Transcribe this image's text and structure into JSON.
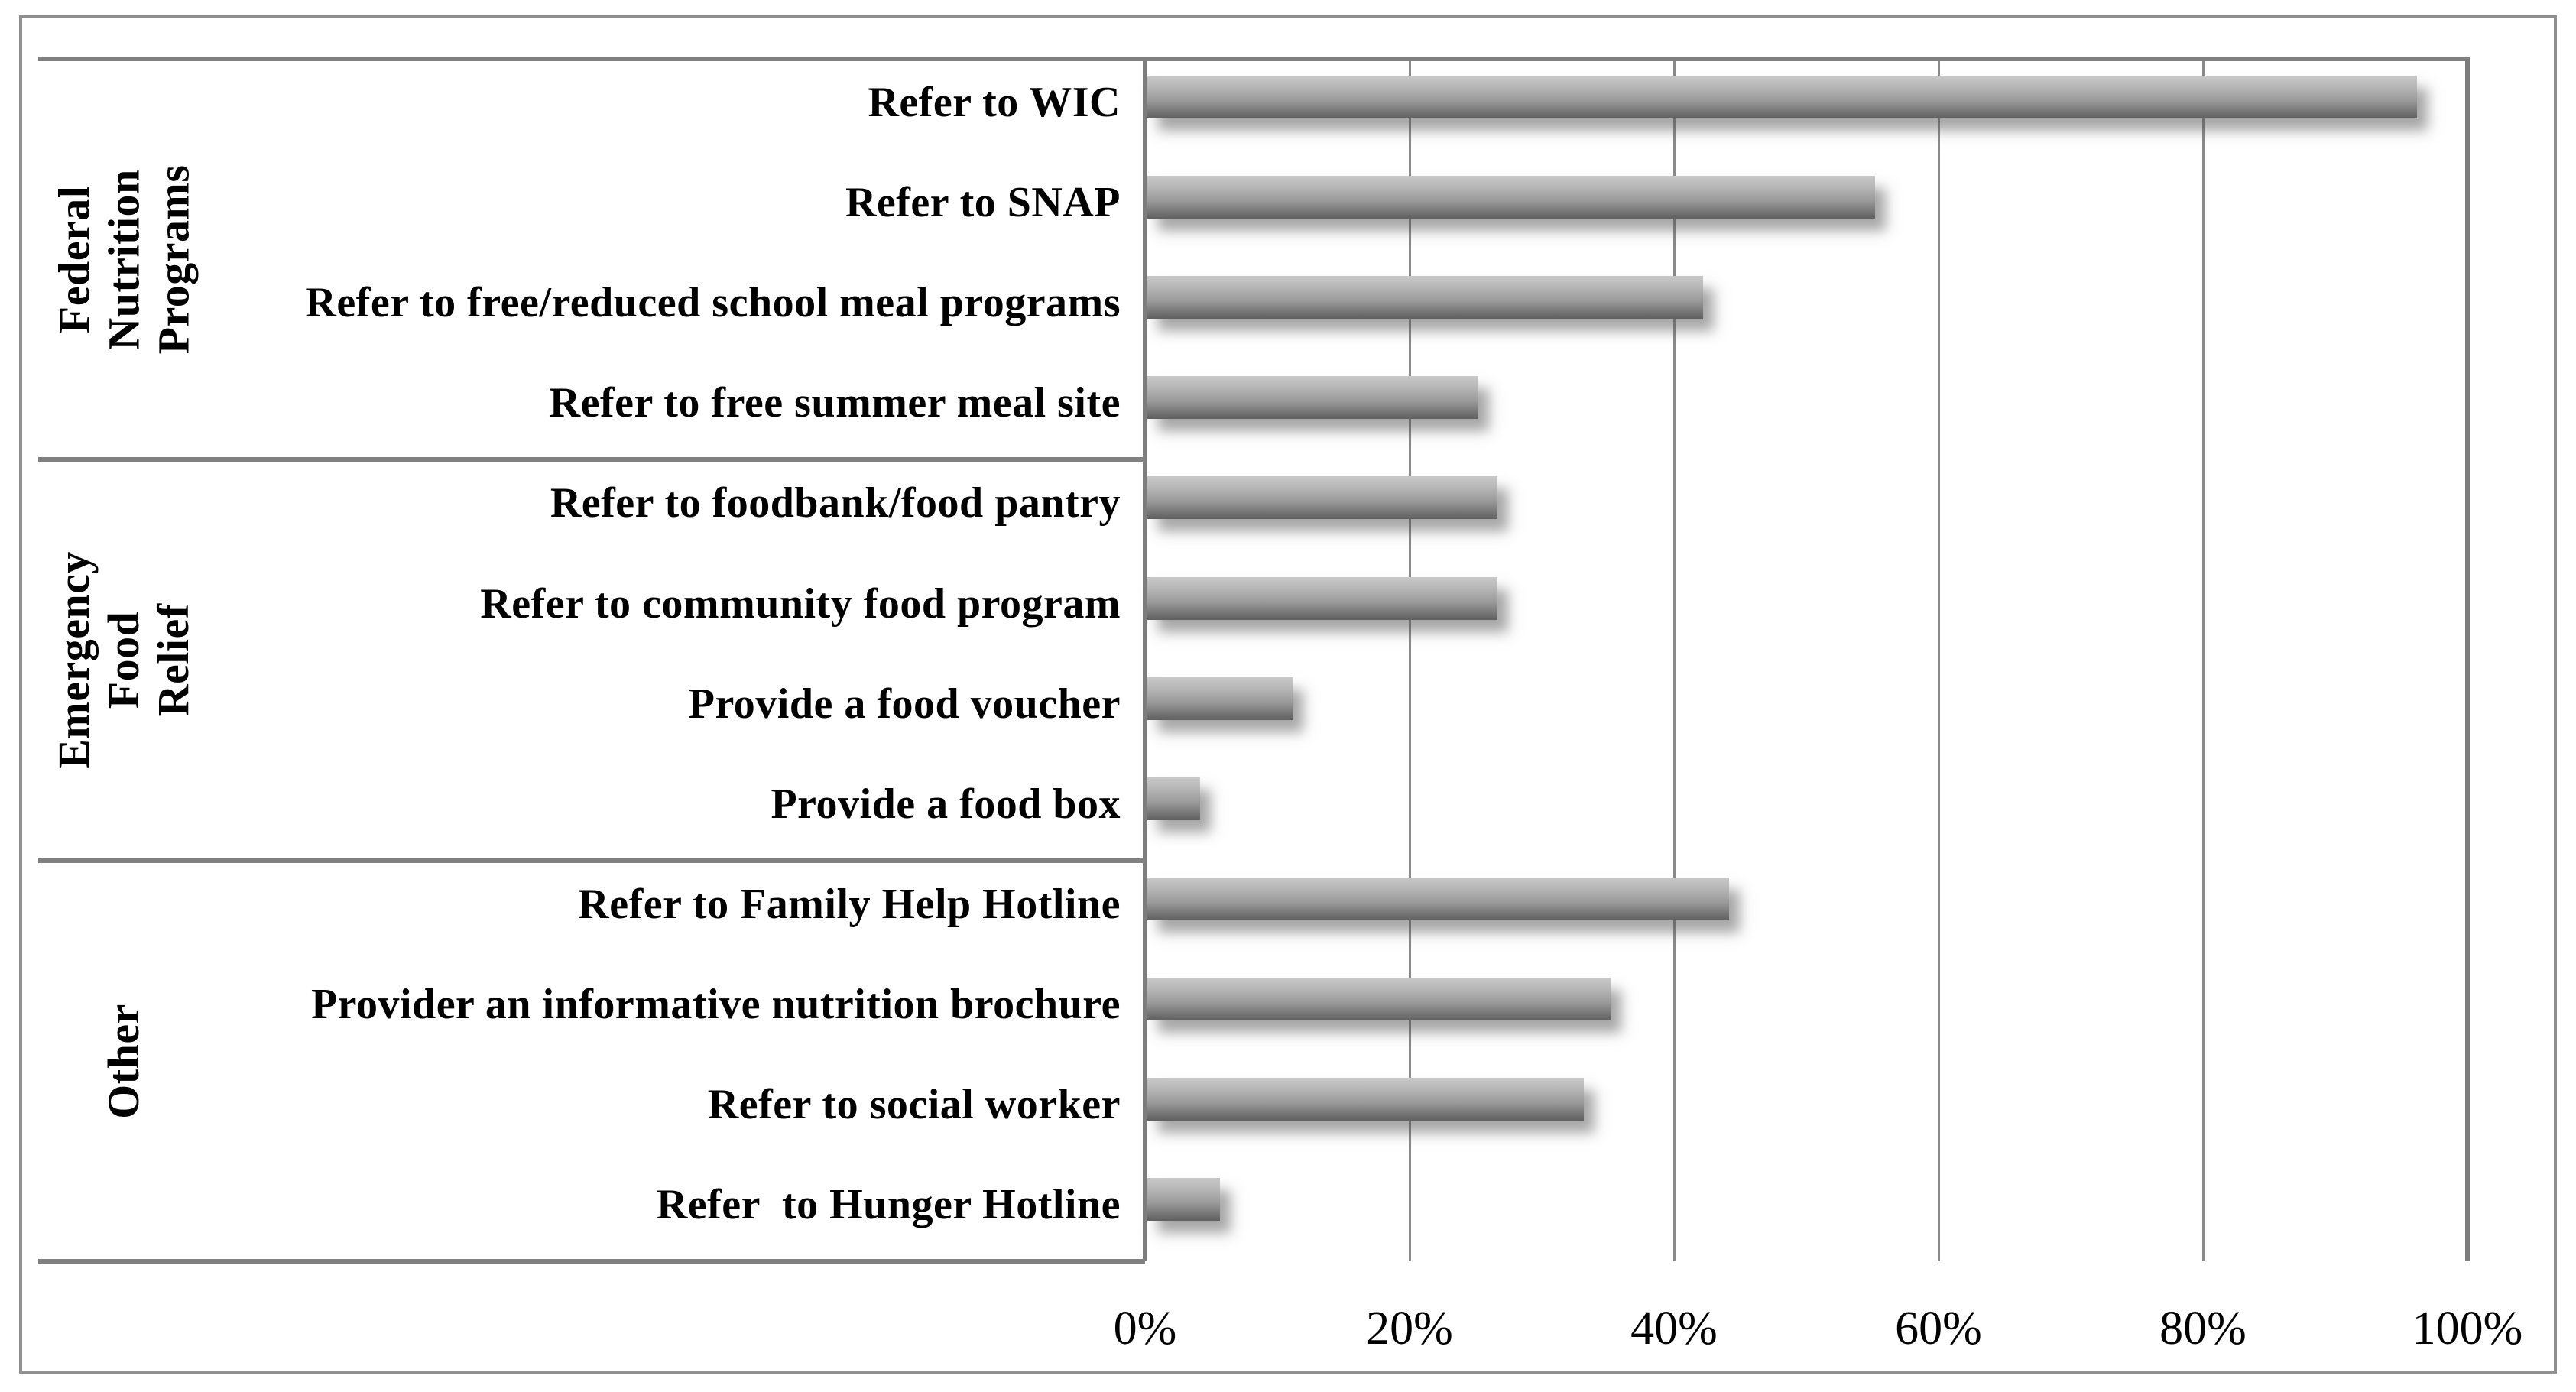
{
  "figure": {
    "background": "#ffffff",
    "frame_color": "#8f8f8f",
    "line_color": "#808080",
    "bar_color_top": "#c9c9c9",
    "bar_color_bottom": "#606060"
  },
  "chart_data": {
    "type": "bar",
    "orientation": "horizontal",
    "title": "",
    "xlabel": "",
    "ylabel": "",
    "unit": "%",
    "xlim": [
      0,
      100
    ],
    "grid": true,
    "x_ticks": [
      {
        "label": "0%",
        "value": 0
      },
      {
        "label": "20%",
        "value": 20
      },
      {
        "label": "40%",
        "value": 40
      },
      {
        "label": "60%",
        "value": 60
      },
      {
        "label": "80%",
        "value": 80
      },
      {
        "label": "100%",
        "value": 100
      }
    ],
    "groups": [
      {
        "label": "Federal Nutrition\nPrograms",
        "items": [
          {
            "label": "Refer to WIC",
            "value": 96
          },
          {
            "label": "Refer to SNAP",
            "value": 55
          },
          {
            "label": "Refer to free/reduced school meal programs",
            "value": 42
          },
          {
            "label": "Refer to free summer meal site",
            "value": 25
          }
        ]
      },
      {
        "label": "Emergency Food\nRelief",
        "items": [
          {
            "label": "Refer to foodbank/food pantry",
            "value": 26.5
          },
          {
            "label": "Refer to community food program",
            "value": 26.5
          },
          {
            "label": "Provide a food voucher",
            "value": 11
          },
          {
            "label": "Provide a food box",
            "value": 4
          }
        ]
      },
      {
        "label": "Other",
        "items": [
          {
            "label": "Refer to Family Help Hotline",
            "value": 44
          },
          {
            "label": "Provider an informative nutrition brochure",
            "value": 35
          },
          {
            "label": "Refer to social worker",
            "value": 33
          },
          {
            "label": "Refer  to Hunger Hotline",
            "value": 5.5
          }
        ]
      }
    ]
  }
}
